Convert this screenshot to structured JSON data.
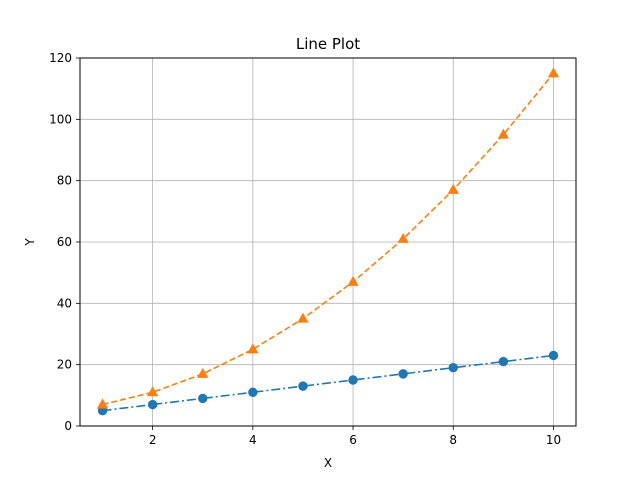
{
  "chart_data": {
    "type": "line",
    "title": "Line Plot",
    "xlabel": "X",
    "ylabel": "Y",
    "xlim": [
      0.55,
      10.45
    ],
    "ylim": [
      0,
      120
    ],
    "xticks": [
      2,
      4,
      6,
      8,
      10
    ],
    "yticks": [
      0,
      20,
      40,
      60,
      80,
      100,
      120
    ],
    "grid": true,
    "x": [
      1,
      2,
      3,
      4,
      5,
      6,
      7,
      8,
      9,
      10
    ],
    "series": [
      {
        "values": [
          5,
          7,
          9,
          11,
          13,
          15,
          17,
          19,
          21,
          23
        ],
        "color": "#1f77b4",
        "line_style": "dash-dot",
        "marker": "circle"
      },
      {
        "values": [
          7,
          11,
          17,
          25,
          35,
          47,
          61,
          77,
          95,
          115
        ],
        "color": "#ff7f0e",
        "line_style": "dashed",
        "marker": "triangle"
      }
    ]
  }
}
